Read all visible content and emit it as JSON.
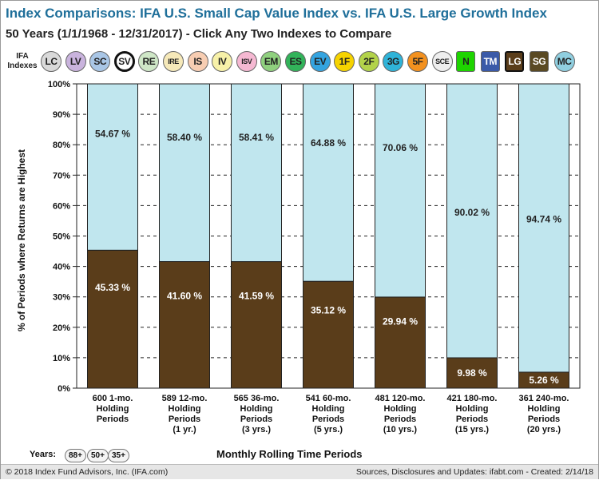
{
  "title": "Index Comparisons:  IFA U.S. Small Cap Value Index vs. IFA U.S. Large Growth Index",
  "subtitle": "50 Years (1/1/1968 - 12/31/2017)  - Click Any Two Indexes to Compare",
  "ifa_label_line1": "IFA",
  "ifa_label_line2": "Indexes",
  "indexes": [
    {
      "label": "LC",
      "color": "#d9d9d9"
    },
    {
      "label": "LV",
      "color": "#c9b3dd"
    },
    {
      "label": "SC",
      "color": "#a9c6e6"
    },
    {
      "label": "SV",
      "color": "#ffffff",
      "selected": true
    },
    {
      "label": "RE",
      "color": "#cfe7c7"
    },
    {
      "label": "IRE",
      "color": "#f6e9b9"
    },
    {
      "label": "IS",
      "color": "#f7cdb2"
    },
    {
      "label": "IV",
      "color": "#f7f1a8"
    },
    {
      "label": "ISV",
      "color": "#f5b8d2"
    },
    {
      "label": "EM",
      "color": "#8fd07e"
    },
    {
      "label": "ES",
      "color": "#32b35a"
    },
    {
      "label": "EV",
      "color": "#34a4e0"
    },
    {
      "label": "1F",
      "color": "#f6d300"
    },
    {
      "label": "2F",
      "color": "#b3d34a"
    },
    {
      "label": "3G",
      "color": "#2fb3d8"
    },
    {
      "label": "5F",
      "color": "#f3911f"
    },
    {
      "label": "SCE",
      "color": "#eeeeee"
    },
    {
      "label": "N",
      "color": "#1ed400",
      "square": true
    },
    {
      "label": "TM",
      "color": "#3b5aa8",
      "square": true
    },
    {
      "label": "LG",
      "color": "#5a3d1a",
      "square": true,
      "selected": true
    },
    {
      "label": "SG",
      "color": "#5a4a24",
      "square": true
    },
    {
      "label": "MC",
      "color": "#90cfe0"
    }
  ],
  "chart_data": {
    "type": "bar",
    "stacked": true,
    "title": "",
    "xlabel": "Monthly Rolling Time Periods",
    "ylabel": "% of Periods where Returns are Highest",
    "ylim": [
      0,
      100
    ],
    "yticks": [
      "0%",
      "10%",
      "20%",
      "30%",
      "40%",
      "50%",
      "60%",
      "70%",
      "80%",
      "90%",
      "100%"
    ],
    "grid": true,
    "categories": [
      [
        "600 1-mo.",
        "Holding",
        "Periods"
      ],
      [
        "589 12-mo.",
        "Holding",
        "Periods",
        "(1 yr.)"
      ],
      [
        "565 36-mo.",
        "Holding",
        "Periods",
        "(3 yrs.)"
      ],
      [
        "541 60-mo.",
        "Holding",
        "Periods",
        "(5 yrs.)"
      ],
      [
        "481 120-mo.",
        "Holding",
        "Periods",
        "(10 yrs.)"
      ],
      [
        "421 180-mo.",
        "Holding",
        "Periods",
        "(15 yrs.)"
      ],
      [
        "361 240-mo.",
        "Holding",
        "Periods",
        "(20 yrs.)"
      ]
    ],
    "series": [
      {
        "color": "#5a3d1a",
        "label_color": "#ffffff",
        "values": [
          45.33,
          41.6,
          41.59,
          35.12,
          29.94,
          9.98,
          5.26
        ],
        "labels": [
          "45.33 %",
          "41.60 %",
          "41.59 %",
          "35.12 %",
          "29.94 %",
          "9.98 %",
          "5.26 %"
        ]
      },
      {
        "color": "#c0e6ee",
        "label_color": "#222222",
        "values": [
          54.67,
          58.4,
          58.41,
          64.88,
          70.06,
          90.02,
          94.74
        ],
        "labels": [
          "54.67 %",
          "58.40 %",
          "58.41 %",
          "64.88 %",
          "70.06 %",
          "90.02 %",
          "94.74 %"
        ]
      }
    ]
  },
  "years_label": "Years:",
  "year_buttons": [
    "88+",
    "50+",
    "35+"
  ],
  "footer_left": "© 2018 Index Fund Advisors, Inc. (IFA.com)",
  "footer_right": "Sources, Disclosures and Updates: ifabt.com - Created: 2/14/18"
}
